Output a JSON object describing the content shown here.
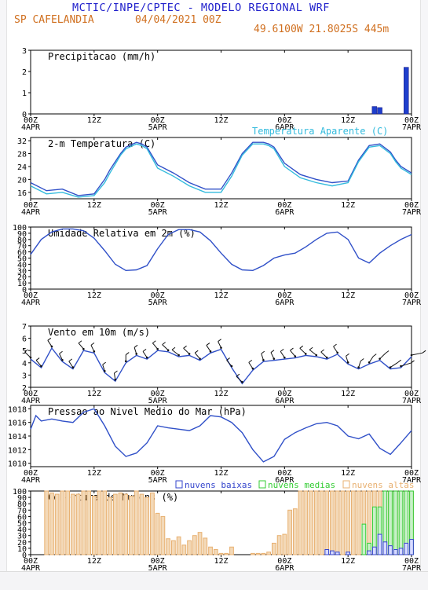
{
  "header": {
    "title": "MCTIC/INPE/CPTEC - MODELO REGIONAL WRF",
    "location": "SP CAFELANDIA",
    "run": "04/04/2021 00Z",
    "coords": "49.6100W 21.8025S 445m"
  },
  "colors": {
    "blue": "#3050c8",
    "cyan": "#33bbdd",
    "orange": "#e8b070",
    "green": "#33cc33",
    "navy": "#22229a",
    "bluebar": "#1f3fcc",
    "violet": "#3344cc"
  },
  "x_axis": {
    "ticks": [
      0,
      12,
      24,
      36,
      48,
      60,
      72
    ],
    "tick_labels": [
      "00Z",
      "12Z",
      "00Z",
      "12Z",
      "00Z",
      "12Z",
      "00Z"
    ],
    "day_labels": [
      {
        "hour": 0,
        "label": "4APR"
      },
      {
        "hour": 24,
        "label": "5APR"
      },
      {
        "hour": 48,
        "label": "6APR"
      },
      {
        "hour": 72,
        "label": "7APR"
      }
    ],
    "range": [
      0,
      72
    ]
  },
  "chart_data": [
    {
      "id": "precip",
      "type": "bar",
      "title": "Precipitacao (mm/h)",
      "ylim": [
        0,
        3
      ],
      "yticks": [
        0,
        1,
        2,
        3
      ],
      "x": [
        65,
        66,
        71
      ],
      "values": [
        0.35,
        0.3,
        2.2
      ]
    },
    {
      "id": "temp",
      "type": "line",
      "title": "2-m Temperatura (C)",
      "ylim": [
        14,
        33
      ],
      "yticks": [
        16,
        20,
        24,
        28,
        32
      ],
      "series": [
        {
          "name": "2-m Temperatura (C)",
          "x": [
            0,
            3,
            6,
            9,
            12,
            14,
            15,
            17,
            18,
            20,
            21,
            22,
            24,
            27,
            30,
            33,
            36,
            38,
            40,
            42,
            44,
            45,
            46,
            48,
            51,
            54,
            57,
            60,
            62,
            64,
            66,
            68,
            69,
            70,
            72
          ],
          "values": [
            19,
            16.5,
            17,
            15,
            15.5,
            20,
            23,
            28,
            30,
            31.5,
            31,
            30,
            24.5,
            22,
            19,
            17,
            17,
            22,
            28,
            31.5,
            31.5,
            31,
            30,
            25,
            21.5,
            20,
            19,
            19.5,
            26,
            30.5,
            31,
            28.5,
            26,
            24,
            22
          ]
        },
        {
          "name": "Temperatura Aparente (C)",
          "x": [
            0,
            3,
            6,
            9,
            12,
            14,
            15,
            17,
            18,
            20,
            21,
            22,
            24,
            27,
            30,
            33,
            36,
            38,
            40,
            42,
            44,
            45,
            46,
            48,
            51,
            54,
            57,
            60,
            62,
            64,
            66,
            68,
            69,
            70,
            72
          ],
          "values": [
            18,
            15.5,
            16,
            14.5,
            15,
            19,
            22,
            27.5,
            29.5,
            31,
            30.5,
            29.5,
            23.5,
            21,
            18,
            16,
            16,
            21,
            27.5,
            31,
            31,
            30.5,
            29.5,
            24,
            20.5,
            19,
            18,
            19,
            25.5,
            30,
            30.5,
            28,
            25.5,
            23.5,
            21.5
          ]
        }
      ]
    },
    {
      "id": "rh",
      "type": "line",
      "title": "Umidade Relativa em 2m (%)",
      "ylim": [
        0,
        100
      ],
      "yticks": [
        0,
        10,
        20,
        30,
        40,
        50,
        60,
        70,
        80,
        90,
        100
      ],
      "series": [
        {
          "name": "Umidade Relativa em 2m (%)",
          "x": [
            0,
            2,
            4,
            6,
            8,
            10,
            12,
            14,
            16,
            18,
            20,
            22,
            24,
            26,
            28,
            30,
            32,
            34,
            36,
            38,
            40,
            42,
            44,
            46,
            48,
            50,
            52,
            54,
            56,
            58,
            60,
            62,
            64,
            66,
            68,
            70,
            72
          ],
          "values": [
            56,
            80,
            92,
            97,
            97,
            94,
            82,
            62,
            40,
            30,
            31,
            38,
            65,
            88,
            96,
            96,
            92,
            78,
            58,
            40,
            31,
            30,
            38,
            50,
            55,
            58,
            68,
            80,
            90,
            92,
            80,
            50,
            42,
            58,
            70,
            80,
            88
          ]
        }
      ]
    },
    {
      "id": "wind",
      "type": "line",
      "title": "Vento em 10m (m/s)",
      "ylim": [
        2,
        7
      ],
      "yticks": [
        2,
        3,
        4,
        5,
        6,
        7
      ],
      "series": [
        {
          "name": "Vento em 10m (m/s)",
          "x": [
            0,
            2,
            4,
            6,
            8,
            10,
            12,
            14,
            16,
            18,
            20,
            22,
            24,
            26,
            28,
            30,
            32,
            34,
            36,
            38,
            40,
            42,
            44,
            46,
            48,
            50,
            52,
            54,
            56,
            58,
            60,
            62,
            64,
            66,
            68,
            70,
            72
          ],
          "values": [
            4.3,
            3.6,
            5.2,
            4.1,
            3.5,
            5.0,
            4.8,
            3.2,
            2.5,
            4.0,
            4.6,
            4.3,
            5.0,
            4.9,
            4.5,
            4.6,
            4.2,
            4.8,
            5.1,
            3.6,
            2.3,
            3.4,
            4.1,
            4.2,
            4.3,
            4.4,
            4.6,
            4.5,
            4.3,
            4.7,
            3.9,
            3.5,
            3.9,
            4.2,
            3.5,
            3.6,
            4.5
          ]
        }
      ],
      "barbs_dir": [
        30,
        25,
        20,
        15,
        20,
        25,
        15,
        10,
        5,
        0,
        10,
        20,
        25,
        30,
        35,
        30,
        25,
        20,
        15,
        25,
        30,
        20,
        10,
        15,
        20,
        25,
        30,
        35,
        30,
        20,
        10,
        350,
        340,
        330,
        320,
        300,
        290
      ]
    },
    {
      "id": "pressure",
      "type": "line",
      "title": "Pressao ao Nivel Medio do Mar (hPa)",
      "ylim": [
        1009.5,
        1018.5
      ],
      "yticks": [
        1010,
        1012,
        1014,
        1016,
        1018
      ],
      "series": [
        {
          "name": "Pressao ao Nivel Medio do Mar (hPa)",
          "x": [
            0,
            1,
            2,
            4,
            6,
            8,
            10,
            12,
            14,
            16,
            18,
            20,
            22,
            24,
            26,
            28,
            30,
            32,
            34,
            36,
            38,
            40,
            42,
            44,
            46,
            48,
            50,
            52,
            54,
            56,
            58,
            60,
            62,
            64,
            66,
            68,
            70,
            72
          ],
          "values": [
            1015,
            1017,
            1016.2,
            1016.5,
            1016.2,
            1016,
            1017.5,
            1018,
            1015.5,
            1012.5,
            1011,
            1011.5,
            1013,
            1015.5,
            1015.2,
            1015,
            1014.8,
            1015.5,
            1017,
            1016.8,
            1016,
            1014.5,
            1012,
            1010.2,
            1011,
            1013.5,
            1014.5,
            1015.2,
            1015.8,
            1016,
            1015.5,
            1014,
            1013.6,
            1014.3,
            1012.2,
            1011.3,
            1013,
            1014.8
          ]
        }
      ]
    },
    {
      "id": "clouds",
      "type": "bar",
      "title": "Cobertura de Nuvens (%)",
      "ylim": [
        0,
        100
      ],
      "yticks": [
        0,
        10,
        20,
        30,
        40,
        50,
        60,
        70,
        80,
        90,
        100
      ],
      "series": [
        {
          "name": "nuvens baixas",
          "x": [
            56,
            57,
            58,
            60,
            62,
            64,
            65,
            66,
            67,
            68,
            69,
            70,
            71,
            72
          ],
          "values": [
            8,
            6,
            4,
            4,
            0,
            6,
            12,
            32,
            20,
            14,
            8,
            10,
            18,
            24
          ]
        },
        {
          "name": "nuvens medias",
          "x": [
            63,
            64,
            65,
            66,
            67,
            68,
            69,
            70,
            71,
            72
          ],
          "values": [
            48,
            18,
            75,
            75,
            100,
            100,
            100,
            100,
            100,
            100
          ]
        },
        {
          "name": "nuvens altas",
          "x": [
            3,
            4,
            5,
            6,
            7,
            8,
            9,
            10,
            11,
            12,
            13,
            14,
            15,
            16,
            17,
            18,
            19,
            20,
            21,
            22,
            23,
            24,
            25,
            26,
            27,
            28,
            29,
            30,
            31,
            32,
            33,
            34,
            35,
            36,
            37,
            38,
            39,
            40,
            41,
            42,
            43,
            44,
            45,
            46,
            47,
            48,
            49,
            50,
            51,
            52,
            53,
            54,
            55,
            56,
            57,
            58,
            59,
            60,
            61,
            62,
            63,
            64,
            65,
            66,
            67,
            68,
            69,
            70,
            71,
            72
          ],
          "values": [
            100,
            97,
            95,
            100,
            100,
            95,
            95,
            100,
            100,
            92,
            100,
            100,
            90,
            95,
            97,
            95,
            92,
            100,
            95,
            90,
            97,
            65,
            60,
            25,
            22,
            28,
            15,
            22,
            30,
            35,
            26,
            12,
            8,
            2,
            2,
            12,
            0,
            0,
            0,
            2,
            2,
            2,
            4,
            18,
            30,
            32,
            70,
            72,
            100,
            100,
            100,
            100,
            100,
            100,
            100,
            100,
            100,
            100,
            100,
            100,
            100,
            100,
            100,
            100,
            100,
            100,
            100,
            100,
            100,
            100
          ]
        }
      ]
    }
  ],
  "legend_clouds": [
    "nuvens baixas",
    "nuvens medias",
    "nuvens altas"
  ],
  "temp_legend2": "Temperatura Aparente (C)"
}
